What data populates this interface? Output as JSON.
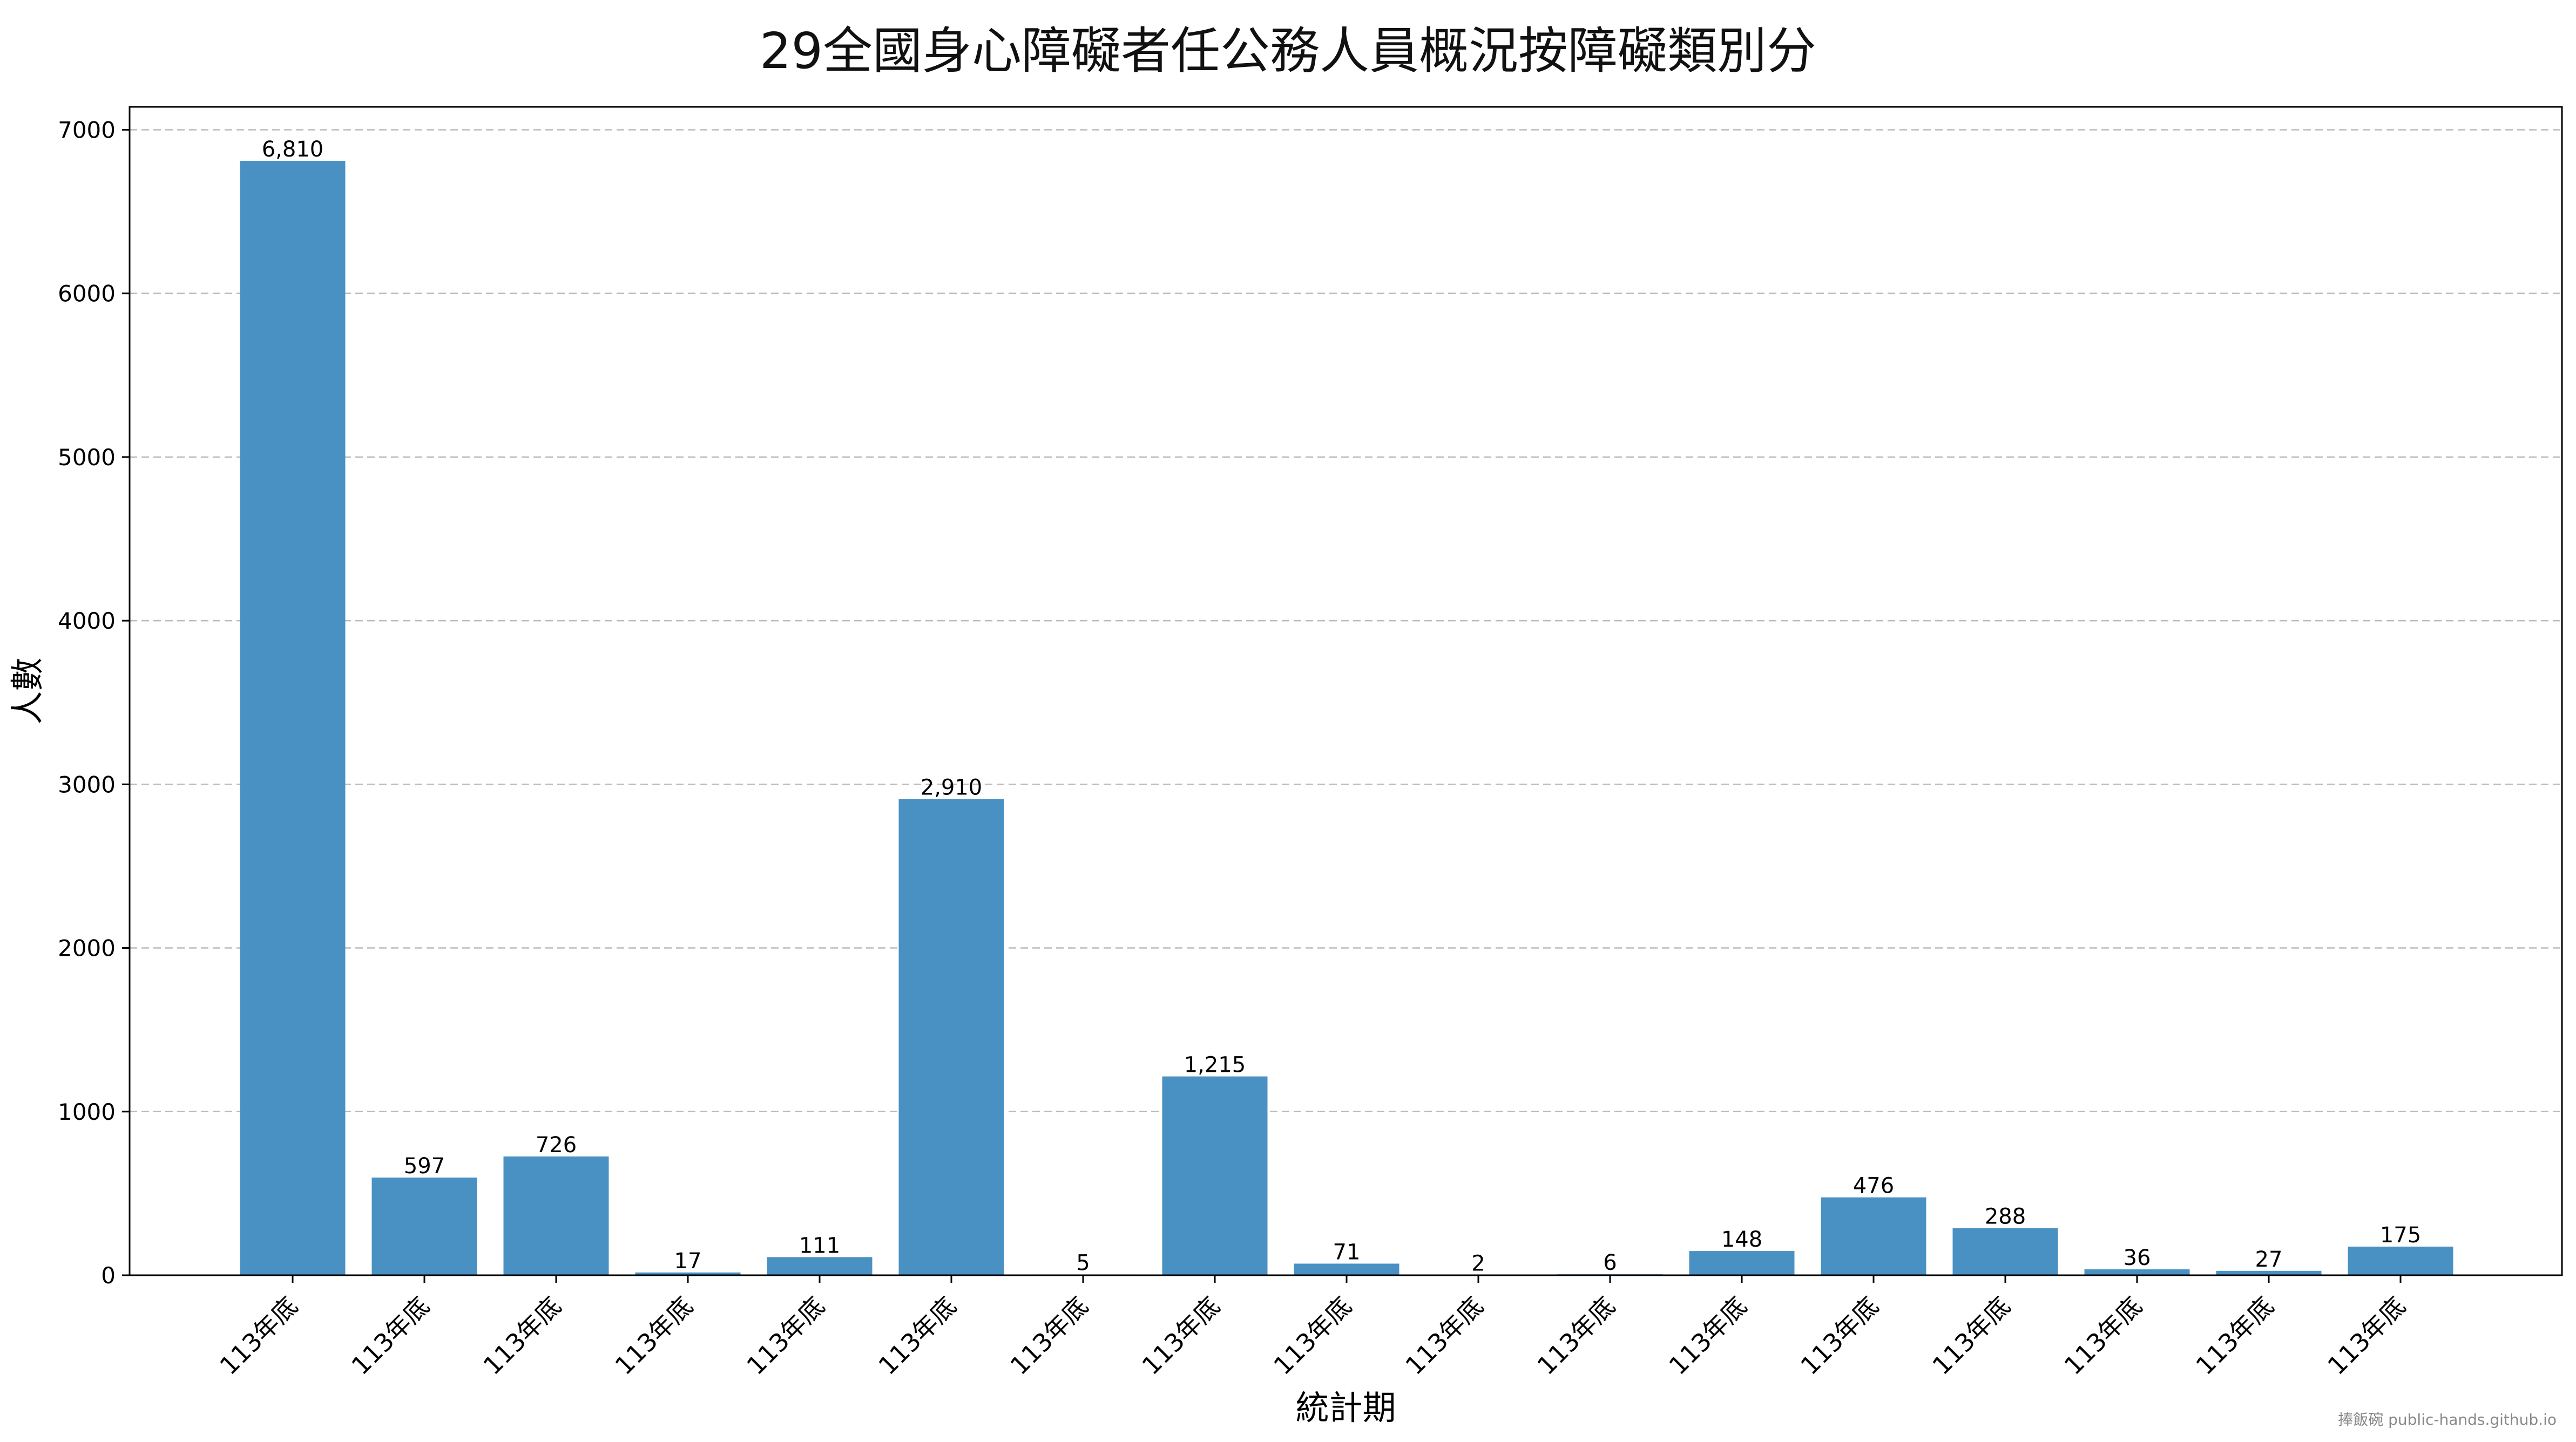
{
  "chart_data": {
    "type": "bar",
    "title": "29全國身心障礙者任公務人員概況按障礙類別分",
    "xlabel": "統計期",
    "ylabel": "人數",
    "categories": [
      "113年底",
      "113年底",
      "113年底",
      "113年底",
      "113年底",
      "113年底",
      "113年底",
      "113年底",
      "113年底",
      "113年底",
      "113年底",
      "113年底",
      "113年底",
      "113年底",
      "113年底",
      "113年底",
      "113年底"
    ],
    "values": [
      6810,
      597,
      726,
      17,
      111,
      2910,
      5,
      1215,
      71,
      2,
      6,
      148,
      476,
      288,
      36,
      27,
      175
    ],
    "data_labels": [
      "6,810",
      "597",
      "726",
      "17",
      "111",
      "2,910",
      "5",
      "1,215",
      "71",
      "2",
      "6",
      "148",
      "476",
      "288",
      "36",
      "27",
      "175"
    ],
    "ylim": [
      0,
      7140
    ],
    "yticks": [
      0,
      1000,
      2000,
      3000,
      4000,
      5000,
      6000,
      7000
    ],
    "grid": "y-dashed",
    "bar_color": "#4a91c3"
  },
  "watermark": "捧飯碗 public-hands.github.io"
}
